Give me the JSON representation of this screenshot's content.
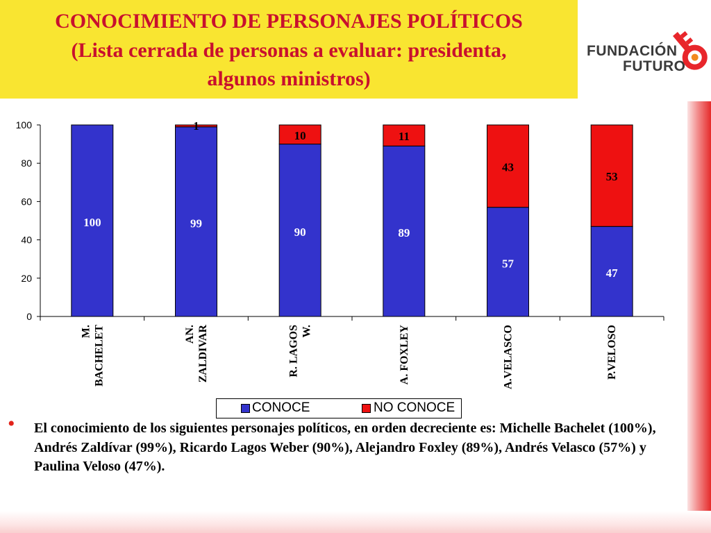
{
  "title": {
    "line1": "CONOCIMIENTO DE PERSONAJES POLÍTICOS",
    "line2": "(Lista cerrada de personas a evaluar: presidenta,",
    "line3": "algunos ministros)"
  },
  "logo": {
    "line1": "FUNDACIÓN",
    "line2": "FUTURO",
    "colors": [
      "#e8262b",
      "#f28a1f",
      "#3a3a3a"
    ]
  },
  "colors": {
    "title_bg": "#f9e531",
    "title_text": "#c8102e",
    "conoce": "#3333cc",
    "no_conoce": "#ee1111"
  },
  "legend": {
    "conoce": "CONOCE",
    "no_conoce": "NO CONOCE"
  },
  "chart_data": {
    "type": "bar",
    "stacked": true,
    "categories": [
      [
        "M.",
        "BACHELET"
      ],
      [
        "AN.",
        "ZALDIVAR"
      ],
      [
        "R. LAGOS",
        "W."
      ],
      [
        "A. FOXLEY"
      ],
      [
        "A.VELASCO"
      ],
      [
        "P.VELOSO"
      ]
    ],
    "series": [
      {
        "name": "CONOCE",
        "values": [
          100,
          99,
          90,
          89,
          57,
          47
        ]
      },
      {
        "name": "NO CONOCE",
        "values": [
          0,
          1,
          10,
          11,
          43,
          53
        ]
      }
    ],
    "yticks": [
      0,
      20,
      40,
      60,
      80,
      100
    ],
    "ylim": [
      0,
      100
    ],
    "grid": false,
    "legend_position": "bottom"
  },
  "body": {
    "bullet": "•",
    "text": "El conocimiento de los siguientes personajes políticos, en orden decreciente es: Michelle Bachelet (100%), Andrés Zaldívar (99%), Ricardo Lagos Weber (90%), Alejandro Foxley (89%), Andrés Velasco (57%) y Paulina Veloso (47%)."
  }
}
